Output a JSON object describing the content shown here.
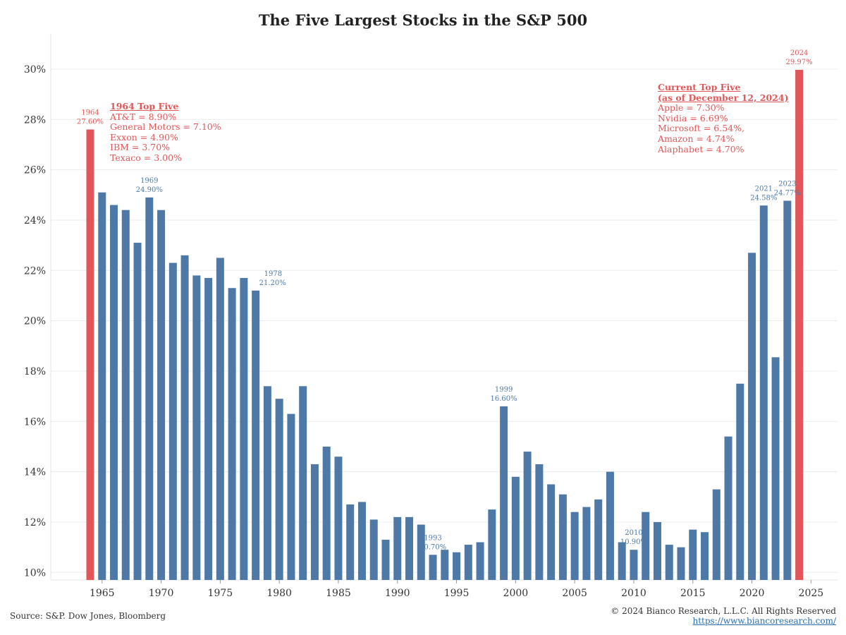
{
  "chart_data": {
    "type": "bar",
    "title": "The Five Largest Stocks in the S&P 500",
    "xlabel": "",
    "ylabel": "",
    "ylim": [
      9.7,
      31.4
    ],
    "xlim": [
      1960.7,
      1927.3
    ],
    "y_ticks": [
      "10%",
      "12%",
      "14%",
      "16%",
      "18%",
      "20%",
      "22%",
      "24%",
      "26%",
      "28%",
      "30%"
    ],
    "y_tick_values": [
      10,
      12,
      14,
      16,
      18,
      20,
      22,
      24,
      26,
      28,
      30
    ],
    "x_ticks": [
      "1965",
      "1970",
      "1975",
      "1980",
      "1985",
      "1990",
      "1995",
      "2000",
      "2005",
      "2010",
      "2015",
      "2020",
      "2025"
    ],
    "x_tick_values": [
      1965,
      1970,
      1975,
      1980,
      1985,
      1990,
      1995,
      2000,
      2005,
      2010,
      2015,
      2020,
      2025
    ],
    "grid": true,
    "colors": {
      "default": "#4e79a7",
      "highlight": "#e15759"
    },
    "series": [
      {
        "x": [
          1964,
          1965,
          1966,
          1967,
          1968,
          1969,
          1970,
          1971,
          1972,
          1973,
          1974,
          1975,
          1976,
          1977,
          1978,
          1979,
          1980,
          1981,
          1982,
          1983,
          1984,
          1985,
          1986,
          1987,
          1988,
          1989,
          1990,
          1991,
          1992,
          1993,
          1994,
          1995,
          1996,
          1997,
          1998,
          1999,
          2000,
          2001,
          2002,
          2003,
          2004,
          2005,
          2006,
          2007,
          2008,
          2009,
          2010,
          2011,
          2012,
          2013,
          2014,
          2015,
          2016,
          2017,
          2018,
          2019,
          2020,
          2021,
          2022,
          2023,
          2024
        ],
        "values": [
          27.6,
          25.1,
          24.6,
          24.4,
          23.1,
          24.9,
          24.4,
          22.3,
          22.6,
          21.8,
          21.7,
          22.5,
          21.3,
          21.7,
          21.2,
          17.4,
          16.9,
          16.3,
          17.4,
          14.3,
          15.0,
          14.6,
          12.7,
          12.8,
          12.1,
          11.3,
          12.2,
          12.2,
          11.9,
          10.7,
          10.9,
          10.8,
          11.1,
          11.2,
          12.5,
          16.6,
          13.8,
          14.8,
          14.3,
          13.5,
          13.1,
          12.4,
          12.6,
          12.9,
          14.0,
          11.2,
          10.9,
          12.4,
          12.0,
          11.1,
          11.0,
          11.7,
          11.6,
          13.3,
          15.4,
          17.5,
          22.7,
          24.58,
          18.55,
          24.77,
          29.97
        ]
      }
    ],
    "highlighted": [
      "1964",
      "2024"
    ],
    "data_labels": [
      {
        "x": 1964,
        "year": "1964",
        "value": "27.60%",
        "color": "red"
      },
      {
        "x": 1969,
        "year": "1969",
        "value": "24.90%",
        "color": "blue"
      },
      {
        "x": 1978,
        "year": "1978",
        "value": "21.20%",
        "color": "blue",
        "side": "right"
      },
      {
        "x": 1993,
        "year": "1993",
        "value": "10.70%",
        "color": "blue"
      },
      {
        "x": 1999,
        "year": "1999",
        "value": "16.60%",
        "color": "blue"
      },
      {
        "x": 2010,
        "year": "2010",
        "value": "10.90%",
        "color": "blue"
      },
      {
        "x": 2021,
        "year": "2021",
        "value": "24.58%",
        "color": "blue"
      },
      {
        "x": 2023,
        "year": "2023",
        "value": "24.77%",
        "color": "blue"
      },
      {
        "x": 2024,
        "year": "2024",
        "value": "29.97%",
        "color": "red"
      }
    ],
    "annotations": {
      "top_five_1964": {
        "heading": "1964 Top Five",
        "lines": [
          "AT&T = 8.90%",
          "General Motors = 7.10%",
          "Exxon = 4.90%",
          "IBM = 3.70%",
          "Texaco = 3.00%"
        ]
      },
      "current_top_five": {
        "heading_line1": "Current Top Five",
        "heading_line2": "(as of December 12, 2024)",
        "lines": [
          "Apple = 7.30%",
          "Nvidia = 6.69%",
          "Microsoft = 6.54%,",
          "Amazon = 4.74%",
          "Alaphabet = 4.70%"
        ]
      }
    }
  },
  "footer": {
    "source": "Source: S&P. Dow Jones, Bloomberg",
    "copyright": "© 2024 Bianco Research, L.L.C. All Rights Reserved",
    "url": "https://www.biancoresearch.com/"
  }
}
